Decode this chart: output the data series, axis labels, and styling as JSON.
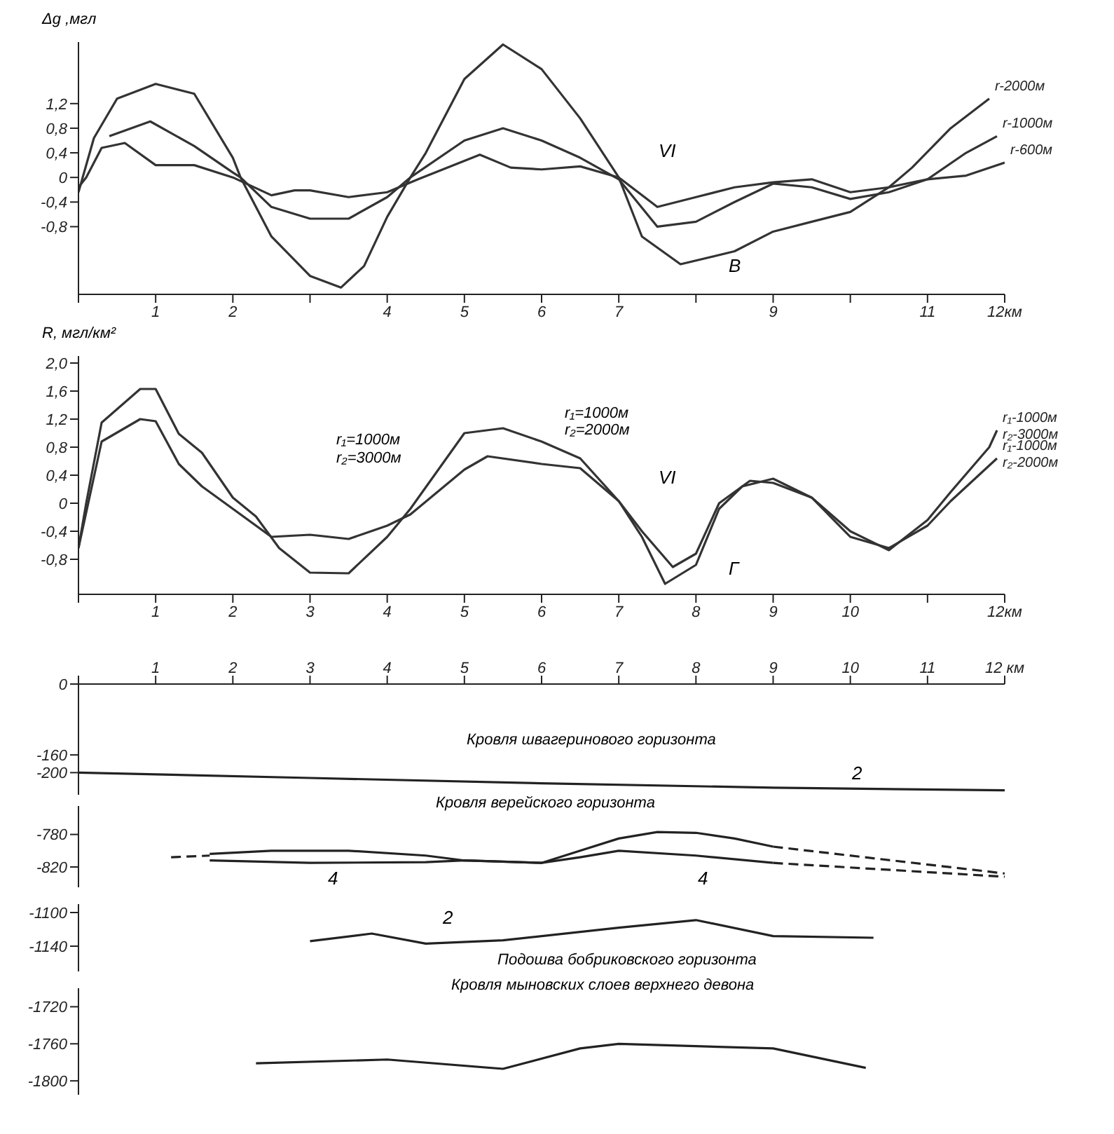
{
  "chart_data": [
    {
      "type": "line",
      "ylabel": "Δg ,мгл",
      "xlim": [
        0,
        12
      ],
      "ylim": [
        -1.9,
        2.2
      ],
      "xticks": [
        {
          "value": 0,
          "label": null
        },
        1,
        2,
        {
          "value": 3,
          "label": null
        },
        4,
        5,
        6,
        7,
        {
          "value": 8,
          "label": null
        },
        9,
        {
          "value": 10,
          "label": null
        },
        11,
        {
          "value": 12,
          "label": "12км"
        }
      ],
      "yticks": [
        {
          "value": -0.8,
          "label": "-0,8"
        },
        {
          "value": -0.4,
          "label": "-0,4"
        },
        0,
        {
          "value": 0.4,
          "label": "0,4"
        },
        {
          "value": 0.8,
          "label": "0,8"
        },
        {
          "value": 1.2,
          "label": "1,2"
        }
      ],
      "grid": false,
      "marker": "none",
      "annotations": [
        "В",
        "VI"
      ],
      "series": [
        {
          "name": "r-2000м",
          "color": "#333333",
          "x": [
            0,
            0.2,
            0.5,
            1,
            1.5,
            2,
            2.1,
            2.5,
            3,
            3.4,
            3.7,
            4,
            4.3,
            4.5,
            5,
            5.5,
            6,
            6.5,
            7,
            7.3,
            7.8,
            8.5,
            9,
            9.5,
            10,
            10.5,
            10.8,
            11.3,
            11.8
          ],
          "values": [
            -0.24,
            0.64,
            1.28,
            1.52,
            1.36,
            0.32,
            0,
            -0.96,
            -1.6,
            -1.79,
            -1.44,
            -0.64,
            0,
            0.4,
            1.6,
            2.16,
            1.76,
            0.96,
            0,
            -0.96,
            -1.41,
            -1.2,
            -0.88,
            -0.72,
            -0.56,
            -0.16,
            0.16,
            0.8,
            1.28
          ]
        },
        {
          "name": "r-1000м",
          "color": "#333333",
          "x": [
            0.4,
            0.93,
            1.5,
            2,
            2.1,
            2.5,
            3,
            3.5,
            4,
            4.3,
            5,
            5.5,
            6,
            6.5,
            7,
            7.5,
            8,
            8.5,
            9,
            9.5,
            10,
            10.5,
            11,
            11.5,
            11.9
          ],
          "values": [
            0.67,
            0.91,
            0.51,
            0.08,
            0,
            -0.48,
            -0.67,
            -0.67,
            -0.32,
            0,
            0.6,
            0.8,
            0.6,
            0.32,
            -0.03,
            -0.8,
            -0.72,
            -0.4,
            -0.1,
            -0.16,
            -0.35,
            -0.24,
            -0.03,
            0.4,
            0.67
          ]
        },
        {
          "name": "r-600м",
          "color": "#333333",
          "x": [
            0,
            0.1,
            0.3,
            0.6,
            1,
            1.5,
            2,
            2.5,
            2.8,
            3,
            3.5,
            4,
            4.4,
            5,
            5.2,
            5.6,
            6,
            6.5,
            7,
            7.5,
            8,
            8.5,
            9,
            9.5,
            10,
            10.5,
            11,
            11.5,
            12
          ],
          "values": [
            -0.16,
            0,
            0.48,
            0.56,
            0.2,
            0.2,
            0,
            -0.29,
            -0.21,
            -0.21,
            -0.32,
            -0.24,
            -0.03,
            0.27,
            0.37,
            0.16,
            0.13,
            0.18,
            0,
            -0.48,
            -0.32,
            -0.16,
            -0.08,
            -0.03,
            -0.24,
            -0.16,
            -0.03,
            0.03,
            0.24
          ]
        }
      ]
    },
    {
      "type": "line",
      "ylabel": "R, мгл/км²",
      "xlim": [
        0,
        12
      ],
      "ylim": [
        -1.3,
        2.1
      ],
      "xticks": [
        {
          "value": 0,
          "label": null
        },
        1,
        2,
        3,
        4,
        5,
        6,
        7,
        8,
        9,
        10,
        {
          "value": 11,
          "label": null
        },
        {
          "value": 12,
          "label": "12км"
        }
      ],
      "yticks": [
        {
          "value": -0.8,
          "label": "-0,8"
        },
        {
          "value": -0.4,
          "label": "-0,4"
        },
        0,
        {
          "value": 0.4,
          "label": "0,4"
        },
        {
          "value": 0.8,
          "label": "0,8"
        },
        {
          "value": 1.2,
          "label": "1,2"
        },
        {
          "value": 1.6,
          "label": "1,6"
        },
        {
          "value": 2,
          "label": "2,0"
        }
      ],
      "grid": false,
      "marker": "none",
      "annotations": [
        "Г",
        "VI",
        "r₁=1000м",
        "r₂=3000м",
        "r₁=1000м",
        "r₂=2000м"
      ],
      "series": [
        {
          "name": "r₁-1000м r₂-3000м",
          "color": "#333333",
          "x": [
            0,
            0.1,
            0.3,
            0.8,
            1,
            1.3,
            1.6,
            2,
            2.3,
            2.6,
            3,
            3.5,
            4,
            4.3,
            5,
            5.5,
            6,
            6.5,
            7,
            7.3,
            7.6,
            8,
            8.3,
            8.6,
            9,
            9.5,
            10,
            10.5,
            11,
            11.3,
            11.8,
            11.9
          ],
          "values": [
            -0.64,
            0,
            1.15,
            1.63,
            1.63,
            0.99,
            0.72,
            0.08,
            -0.19,
            -0.64,
            -0.99,
            -1,
            -0.48,
            -0.08,
            1,
            1.07,
            0.88,
            0.64,
            0.03,
            -0.48,
            -1.15,
            -0.88,
            -0.08,
            0.24,
            0.35,
            0.08,
            -0.4,
            -0.67,
            -0.24,
            0.16,
            0.8,
            1.04
          ]
        },
        {
          "name": "r₁-1000м r₂-2000м",
          "color": "#333333",
          "x": [
            0,
            0.3,
            0.8,
            1,
            1.3,
            1.6,
            1.9,
            2.5,
            3,
            3.5,
            4,
            4.3,
            5,
            5.3,
            6,
            6.5,
            7,
            7.3,
            7.7,
            8,
            8.3,
            8.7,
            9,
            9.5,
            10,
            10.5,
            11,
            11.3,
            11.9
          ],
          "values": [
            -0.64,
            0.88,
            1.2,
            1.17,
            0.56,
            0.24,
            0,
            -0.48,
            -0.45,
            -0.51,
            -0.32,
            -0.16,
            0.48,
            0.67,
            0.56,
            0.5,
            0.03,
            -0.4,
            -0.91,
            -0.72,
            0,
            0.32,
            0.29,
            0.08,
            -0.48,
            -0.64,
            -0.32,
            0.03,
            0.64
          ]
        }
      ]
    },
    {
      "type": "line",
      "xlim": [
        0,
        12
      ],
      "xticks": [
        {
          "value": 0,
          "label": null
        },
        1,
        2,
        3,
        4,
        5,
        6,
        7,
        8,
        9,
        10,
        11,
        {
          "value": 12,
          "label": "12 км"
        }
      ],
      "ylim": [
        -250,
        0
      ],
      "yticks": [
        0,
        -160,
        -200
      ],
      "grid": false,
      "marker": "none",
      "annotations": [
        "Кровля швагеринового горизонта",
        "2"
      ],
      "series": [
        {
          "color": "#222222",
          "x": [
            0,
            3,
            6,
            9,
            12
          ],
          "values": [
            -200,
            -212,
            -224,
            -234,
            -240
          ]
        }
      ]
    },
    {
      "type": "line",
      "xlim": [
        0,
        12
      ],
      "ylim": [
        -845,
        -745
      ],
      "yticks": [
        -780,
        -820
      ],
      "tick_labels": "y",
      "grid": false,
      "marker": "none",
      "annotations": [
        "Кровля верейского горизонта",
        "4",
        "4"
      ],
      "series": [
        {
          "color": "#222222",
          "x": [
            1.7,
            2.5,
            3.5,
            4.5,
            5,
            6,
            6.5,
            7,
            7.5,
            8,
            8.5,
            9
          ],
          "values": [
            -804,
            -800,
            -800,
            -806,
            -812,
            -815,
            -800,
            -785,
            -777,
            -778,
            -785,
            -795
          ]
        },
        {
          "color": "#222222",
          "x": [
            1.7,
            3,
            4.5,
            5,
            6,
            6.5,
            7,
            8,
            9
          ],
          "values": [
            -812,
            -815,
            -814,
            -812,
            -815,
            -808,
            -800,
            -806,
            -815
          ]
        },
        {
          "color": "#222222",
          "line_style": "dashed",
          "x": [
            1.2,
            1.7
          ],
          "values": [
            -808,
            -806
          ]
        },
        {
          "color": "#222222",
          "line_style": "dashed",
          "x": [
            9,
            12
          ],
          "values": [
            -795,
            -828
          ]
        },
        {
          "color": "#222222",
          "line_style": "dashed",
          "x": [
            9,
            12
          ],
          "values": [
            -815,
            -832
          ]
        }
      ]
    },
    {
      "type": "line",
      "xlim": [
        0,
        12
      ],
      "ylim": [
        -1170,
        -1090
      ],
      "yticks": [
        -1100,
        -1140
      ],
      "tick_labels": "y",
      "grid": false,
      "marker": "none",
      "annotations": [
        "2",
        "Подошва бобриковского горизонта"
      ],
      "series": [
        {
          "color": "#222222",
          "x": [
            3,
            3.8,
            4.5,
            5.5,
            7,
            8,
            9,
            10.3
          ],
          "values": [
            -1134,
            -1125,
            -1137,
            -1133,
            -1118,
            -1109,
            -1128,
            -1130
          ]
        }
      ]
    },
    {
      "type": "line",
      "xlim": [
        0,
        12
      ],
      "ylim": [
        -1815,
        -1700
      ],
      "yticks": [
        -1720,
        -1760,
        -1800
      ],
      "tick_labels": "y",
      "grid": false,
      "marker": "none",
      "annotations": [
        "Кровля мыновских слоев верхнего девона"
      ],
      "series": [
        {
          "color": "#222222",
          "x": [
            2.3,
            4,
            5.5,
            6.5,
            7,
            9,
            10.2
          ],
          "values": [
            -1781,
            -1777,
            -1787,
            -1765,
            -1760,
            -1765,
            -1786
          ]
        }
      ]
    }
  ]
}
